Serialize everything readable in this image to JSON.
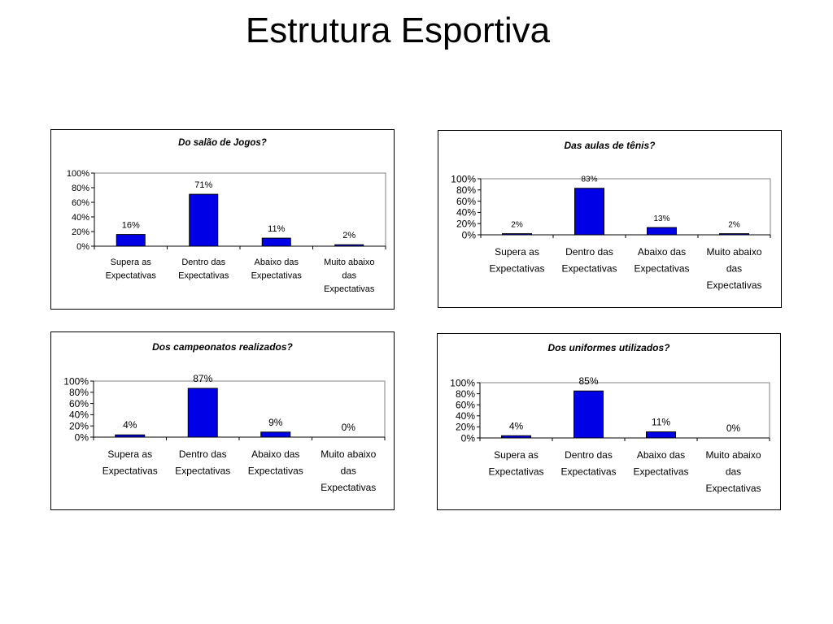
{
  "page": {
    "title": "Estrutura Esportiva"
  },
  "colors": {
    "bar": "#0000e6",
    "bar_outline": "#000000",
    "plot_border": "#808080"
  },
  "chart_data": [
    {
      "type": "bar",
      "title": "Do salão de Jogos?",
      "categories": [
        [
          "Supera as",
          "Expectativas"
        ],
        [
          "Dentro das",
          "Expectativas"
        ],
        [
          "Abaixo das",
          "Expectativas"
        ],
        [
          "Muito abaixo",
          "das",
          "Expectativas"
        ]
      ],
      "values": [
        16,
        71,
        11,
        2
      ],
      "data_labels": [
        "16%",
        "71%",
        "11%",
        "2%"
      ],
      "yticks": [
        "0%",
        "20%",
        "40%",
        "60%",
        "80%",
        "100%"
      ],
      "ylim": [
        0,
        100
      ],
      "grid": false,
      "legend": "none"
    },
    {
      "type": "bar",
      "title": "Das aulas de tênis?",
      "categories": [
        [
          "Supera as",
          "Expectativas"
        ],
        [
          "Dentro das",
          "Expectativas"
        ],
        [
          "Abaixo das",
          "Expectativas"
        ],
        [
          "Muito abaixo",
          "das",
          "Expectativas"
        ]
      ],
      "values": [
        2,
        83,
        13,
        2
      ],
      "data_labels": [
        "2%",
        "83%",
        "13%",
        "2%"
      ],
      "yticks": [
        "0%",
        "20%",
        "40%",
        "60%",
        "80%",
        "100%"
      ],
      "ylim": [
        0,
        100
      ],
      "grid": false,
      "legend": "none"
    },
    {
      "type": "bar",
      "title": "Dos campeonatos realizados?",
      "categories": [
        [
          "Supera as",
          "Expectativas"
        ],
        [
          "Dentro das",
          "Expectativas"
        ],
        [
          "Abaixo das",
          "Expectativas"
        ],
        [
          "Muito abaixo",
          "das",
          "Expectativas"
        ]
      ],
      "values": [
        4,
        87,
        9,
        0
      ],
      "data_labels": [
        "4%",
        "87%",
        "9%",
        "0%"
      ],
      "yticks": [
        "0%",
        "20%",
        "40%",
        "60%",
        "80%",
        "100%"
      ],
      "ylim": [
        0,
        100
      ],
      "grid": false,
      "legend": "none"
    },
    {
      "type": "bar",
      "title": "Dos uniformes utilizados?",
      "categories": [
        [
          "Supera as",
          "Expectativas"
        ],
        [
          "Dentro das",
          "Expectativas"
        ],
        [
          "Abaixo das",
          "Expectativas"
        ],
        [
          "Muito abaixo",
          "das",
          "Expectativas"
        ]
      ],
      "values": [
        4,
        85,
        11,
        0
      ],
      "data_labels": [
        "4%",
        "85%",
        "11%",
        "0%"
      ],
      "yticks": [
        "0%",
        "20%",
        "40%",
        "60%",
        "80%",
        "100%"
      ],
      "ylim": [
        0,
        100
      ],
      "grid": false,
      "legend": "none"
    }
  ]
}
